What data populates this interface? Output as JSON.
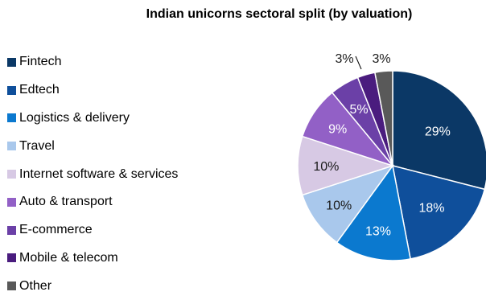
{
  "chart_data": {
    "type": "pie",
    "title": "Indian unicorns sectoral split (by valuation)",
    "legend_placement": "left",
    "slices": [
      {
        "label": "Fintech",
        "value": 29,
        "value_label": "29%",
        "color": "#0b3866",
        "label_color": "#ffffff"
      },
      {
        "label": "Edtech",
        "value": 18,
        "value_label": "18%",
        "color": "#0f4f9b",
        "label_color": "#ffffff"
      },
      {
        "label": "Logistics & delivery",
        "value": 13,
        "value_label": "13%",
        "color": "#0b79cf",
        "label_color": "#ffffff"
      },
      {
        "label": "Travel",
        "value": 10,
        "value_label": "10%",
        "color": "#a9c8ec",
        "label_color": "#1a1a1a"
      },
      {
        "label": "Internet software & services",
        "value": 10,
        "value_label": "10%",
        "color": "#d7c9e4",
        "label_color": "#1a1a1a"
      },
      {
        "label": "Auto & transport",
        "value": 9,
        "value_label": "9%",
        "color": "#9260c6",
        "label_color": "#ffffff"
      },
      {
        "label": "E-commerce",
        "value": 5,
        "value_label": "5%",
        "color": "#6b40a7",
        "label_color": "#ffffff"
      },
      {
        "label": "Mobile & telecom",
        "value": 3,
        "value_label": "3%",
        "color": "#4a1c7e",
        "label_color": "#1a1a1a"
      },
      {
        "label": "Other",
        "value": 3,
        "value_label": "3%",
        "color": "#595959",
        "label_color": "#1a1a1a"
      }
    ]
  }
}
